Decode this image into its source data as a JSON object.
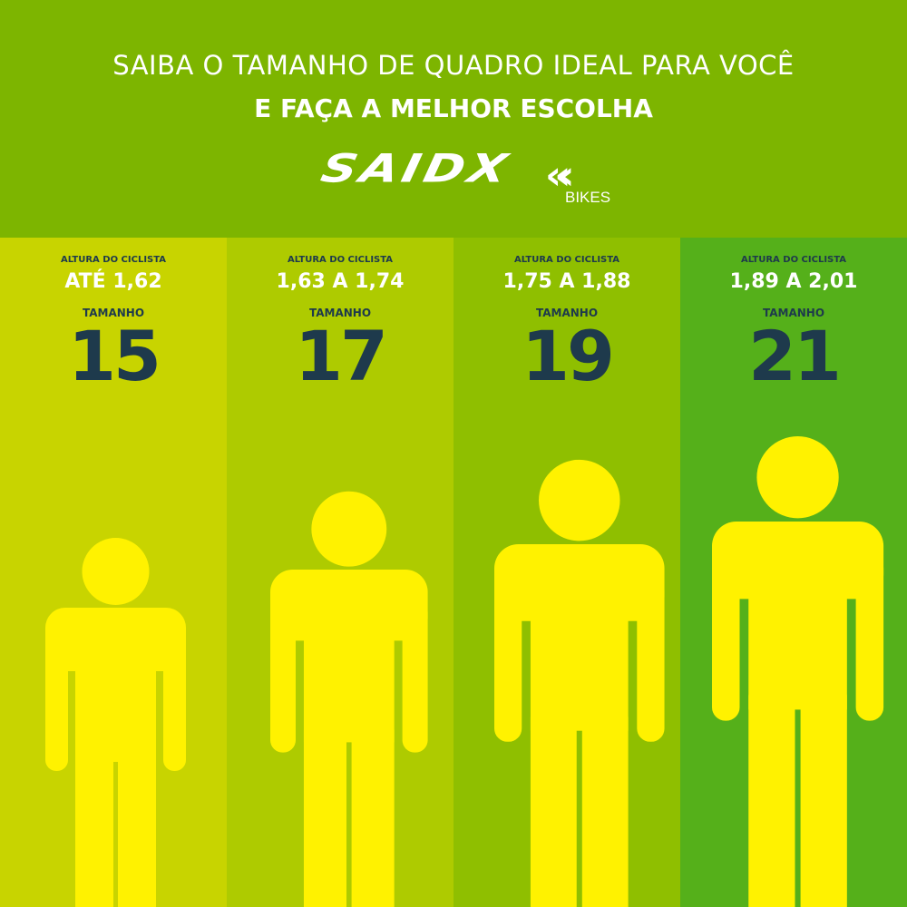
{
  "header": {
    "line1": "SAIBA O TAMANHO DE QUADRO IDEAL PARA VOCÊ",
    "line2": "E FAÇA A MELHOR ESCOLHA"
  },
  "logo": {
    "name": "SAIDX",
    "sub": "BIKES"
  },
  "colors": {
    "header": "#7db500",
    "figure": "#fff200",
    "number": "#1e3a4c"
  },
  "sizes": [
    {
      "label": "ALTURA DO CICLISTA",
      "range": "ATÉ 1,62",
      "size_label": "TAMANHO",
      "size": "15",
      "color": "#c8d400"
    },
    {
      "label": "ALTURA DO CICLISTA",
      "range": "1,63 A 1,74",
      "size_label": "TAMANHO",
      "size": "17",
      "color": "#aecb00"
    },
    {
      "label": "ALTURA DO CICLISTA",
      "range": "1,75 A 1,88",
      "size_label": "TAMANHO",
      "size": "19",
      "color": "#8fbf00"
    },
    {
      "label": "ALTURA DO CICLISTA",
      "range": "1,89 A 2,01",
      "size_label": "TAMANHO",
      "size": "21",
      "color": "#55b01a"
    }
  ]
}
